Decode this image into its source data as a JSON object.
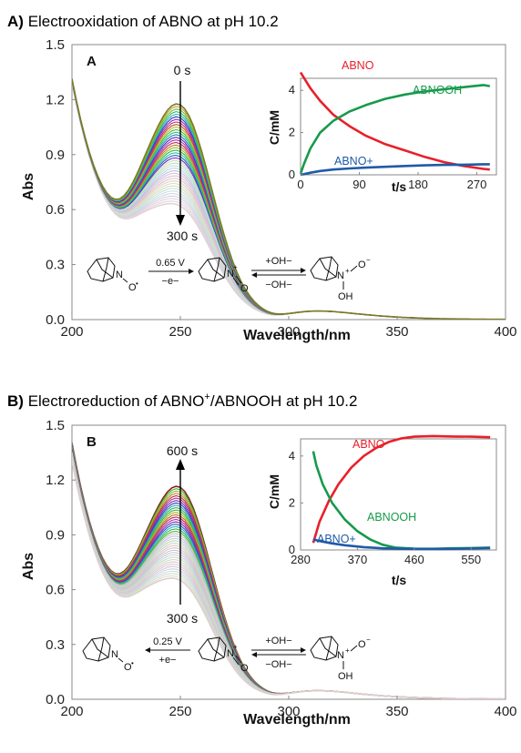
{
  "figure": {
    "panel_a_title": {
      "letter": "A)",
      "text": "Electrooxidation of ABNO at pH 10.2"
    },
    "panel_b_title": {
      "letter": "B)",
      "text_pre": "Electroreduction of ABNO",
      "sup": "+",
      "text_post": "/ABNOOH at pH 10.2"
    },
    "panel_a_letter": "A",
    "panel_b_letter": "B"
  },
  "scheme": {
    "a": {
      "potential": "0.65 V",
      "electron": "−e−",
      "fwd": "+OH−",
      "back": "−OH−"
    },
    "b": {
      "potential": "0.25 V",
      "electron": "+e−",
      "fwd": "+OH−",
      "back": "−OH−"
    },
    "atoms": {
      "n": "N",
      "o": "O",
      "oh": "OH",
      "plus": "+",
      "minus": "−",
      "dot": "•"
    }
  },
  "colors": {
    "abno": "#e8202a",
    "abnooh": "#169a4c",
    "abno_plus": "#1f5aa8",
    "first_spectrum": "#7a7a28",
    "last_spectrum_b": "#8b2020"
  },
  "chart_data": [
    {
      "id": "A-main",
      "type": "line",
      "xlabel": "Wavelength/nm",
      "ylabel": "Abs",
      "xlim": [
        200,
        400
      ],
      "ylim": [
        0,
        1.5
      ],
      "xticks": [
        200,
        250,
        300,
        350,
        400
      ],
      "yticks": [
        "0.0",
        "0.3",
        "0.6",
        "0.9",
        "1.2",
        "1.5"
      ],
      "annotation_start": "0 s",
      "annotation_end": "300 s",
      "spectra_count": 40,
      "peak_nm": 250,
      "peak_abs_start": 1.21,
      "peak_abs_end": 0.66,
      "abs_at_200nm_start": 1.31,
      "abs_at_200nm_end": 1.29,
      "abs_at_300nm": 0.17,
      "abs_at_400nm": 0.0,
      "grid": false
    },
    {
      "id": "A-inset",
      "type": "line",
      "xlabel": "t/s",
      "ylabel": "C/mM",
      "xlim": [
        0,
        300
      ],
      "ylim": [
        0,
        5
      ],
      "xticks": [
        0,
        90,
        180,
        270
      ],
      "yticks": [
        0,
        2,
        4
      ],
      "series": [
        {
          "name": "ABNO",
          "x": [
            0,
            5,
            15,
            30,
            50,
            75,
            100,
            130,
            160,
            190,
            220,
            250,
            280,
            290
          ],
          "y": [
            4.85,
            4.6,
            4.1,
            3.5,
            2.85,
            2.3,
            1.85,
            1.45,
            1.15,
            0.85,
            0.6,
            0.42,
            0.28,
            0.25
          ]
        },
        {
          "name": "ABNOOH",
          "x": [
            0,
            5,
            15,
            30,
            50,
            75,
            100,
            130,
            160,
            190,
            220,
            250,
            280,
            290
          ],
          "y": [
            0.05,
            0.5,
            1.25,
            2.0,
            2.55,
            3.0,
            3.3,
            3.6,
            3.8,
            3.95,
            4.05,
            4.15,
            4.25,
            4.2
          ]
        },
        {
          "name": "ABNO+",
          "x": [
            0,
            5,
            15,
            30,
            50,
            75,
            100,
            130,
            160,
            190,
            220,
            250,
            280,
            290
          ],
          "y": [
            0.0,
            0.03,
            0.1,
            0.18,
            0.25,
            0.3,
            0.34,
            0.38,
            0.42,
            0.45,
            0.47,
            0.48,
            0.5,
            0.5
          ]
        }
      ]
    },
    {
      "id": "B-main",
      "type": "line",
      "xlabel": "Wavelength/nm",
      "ylabel": "Abs",
      "xlim": [
        200,
        400
      ],
      "ylim": [
        0,
        1.5
      ],
      "xticks": [
        200,
        250,
        300,
        350,
        400
      ],
      "yticks": [
        "0.0",
        "0.3",
        "0.6",
        "0.9",
        "1.2",
        "1.5"
      ],
      "annotation_start": "300 s",
      "annotation_end": "600 s",
      "spectra_count": 40,
      "peak_nm": 250,
      "peak_abs_start": 0.69,
      "peak_abs_end": 1.19,
      "abs_at_200nm_start": 1.3,
      "abs_at_200nm_end": 1.4,
      "abs_at_300nm": 0.17,
      "abs_at_400nm": 0.0,
      "grid": false
    },
    {
      "id": "B-inset",
      "type": "line",
      "xlabel": "t/s",
      "ylabel": "C/mM",
      "xlim": [
        280,
        590
      ],
      "ylim": [
        0,
        5
      ],
      "xticks": [
        280,
        370,
        460,
        550
      ],
      "yticks": [
        0,
        2,
        4
      ],
      "series": [
        {
          "name": "ABNO",
          "x": [
            300,
            310,
            325,
            340,
            360,
            380,
            400,
            420,
            440,
            460,
            490,
            520,
            550,
            580
          ],
          "y": [
            0.3,
            1.2,
            2.1,
            2.8,
            3.5,
            4.0,
            4.35,
            4.6,
            4.75,
            4.82,
            4.85,
            4.83,
            4.82,
            4.8
          ]
        },
        {
          "name": "ABNOOH",
          "x": [
            300,
            305,
            315,
            330,
            350,
            370,
            390,
            410,
            430,
            460,
            490,
            520,
            550,
            580
          ],
          "y": [
            4.2,
            3.6,
            2.8,
            2.0,
            1.3,
            0.8,
            0.45,
            0.22,
            0.1,
            0.06,
            0.05,
            0.07,
            0.08,
            0.1
          ]
        },
        {
          "name": "ABNO+",
          "x": [
            300,
            310,
            330,
            350,
            380,
            410,
            440,
            470,
            500,
            530,
            560,
            580
          ],
          "y": [
            0.45,
            0.38,
            0.28,
            0.2,
            0.12,
            0.07,
            0.05,
            0.04,
            0.04,
            0.05,
            0.07,
            0.08
          ]
        }
      ]
    }
  ]
}
